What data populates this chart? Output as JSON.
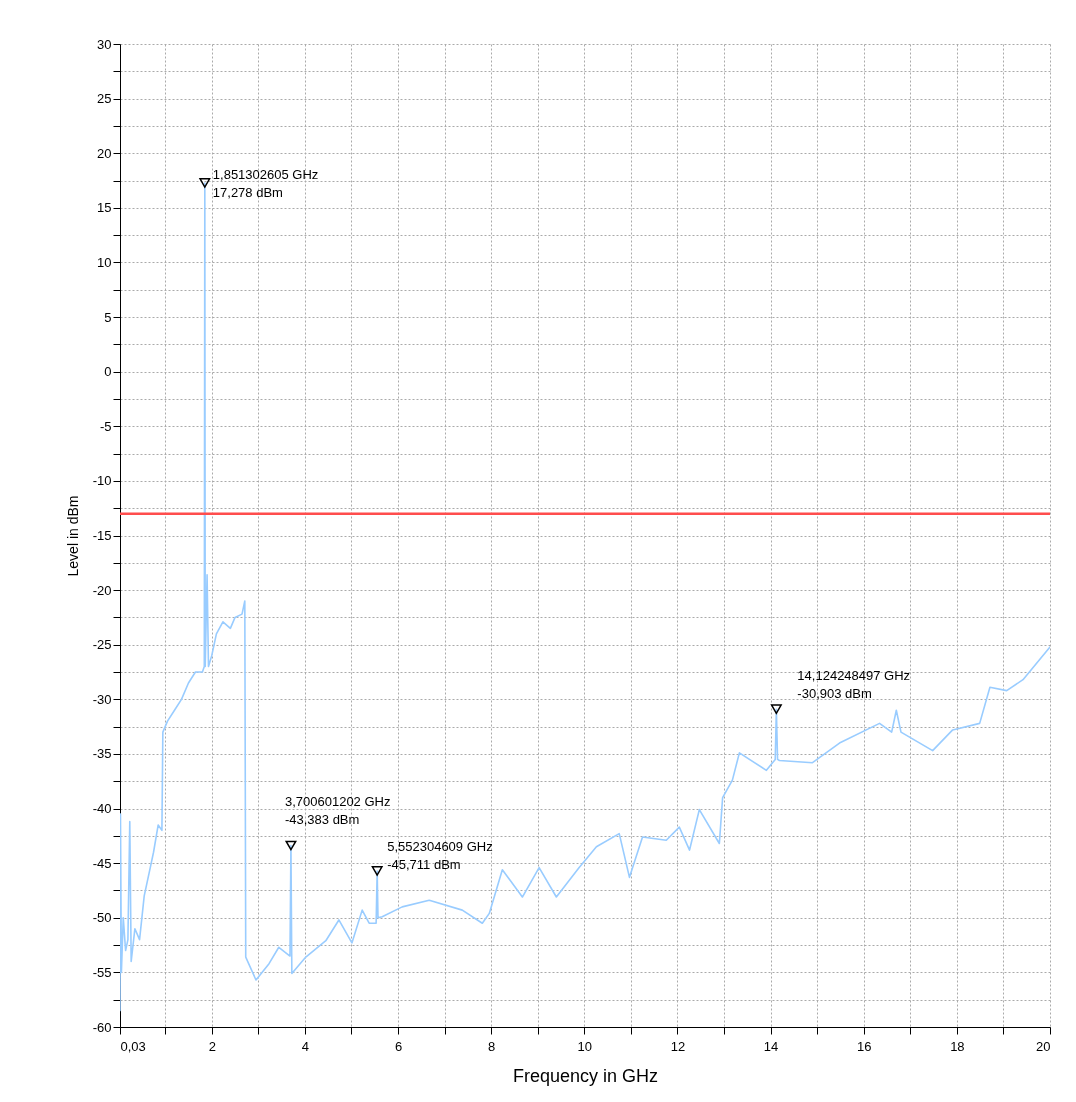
{
  "chart_data": {
    "type": "line",
    "xlabel": "Frequency in GHz",
    "ylabel": "Level in dBm",
    "xlim": [
      0.03,
      20
    ],
    "ylim": [
      -60,
      30
    ],
    "xticks": [
      {
        "value": 0.03,
        "label": "0,03"
      },
      {
        "value": 1,
        "label": null
      },
      2,
      {
        "value": 3,
        "label": null
      },
      4,
      {
        "value": 5,
        "label": null
      },
      6,
      {
        "value": 7,
        "label": null
      },
      8,
      {
        "value": 9,
        "label": null
      },
      10,
      {
        "value": 11,
        "label": null
      },
      12,
      {
        "value": 13,
        "label": null
      },
      14,
      {
        "value": 15,
        "label": null
      },
      16,
      {
        "value": 17,
        "label": null
      },
      18,
      {
        "value": 19,
        "label": null
      },
      20
    ],
    "yticks": [
      -60,
      {
        "value": -57.5,
        "label": null
      },
      -55,
      {
        "value": -52.5,
        "label": null
      },
      -50,
      {
        "value": -47.5,
        "label": null
      },
      -45,
      {
        "value": -42.5,
        "label": null
      },
      -40,
      {
        "value": -37.5,
        "label": null
      },
      -35,
      {
        "value": -32.5,
        "label": null
      },
      -30,
      {
        "value": -27.5,
        "label": null
      },
      -25,
      {
        "value": -22.5,
        "label": null
      },
      -20,
      {
        "value": -17.5,
        "label": null
      },
      -15,
      {
        "value": -12.5,
        "label": null
      },
      -10,
      {
        "value": -7.5,
        "label": null
      },
      -5,
      {
        "value": -2.5,
        "label": null
      },
      0,
      {
        "value": 2.5,
        "label": null
      },
      5,
      {
        "value": 7.5,
        "label": null
      },
      10,
      {
        "value": 12.5,
        "label": null
      },
      15,
      {
        "value": 17.5,
        "label": null
      },
      20,
      {
        "value": 22.5,
        "label": null
      },
      25,
      {
        "value": 27.5,
        "label": null
      },
      30
    ],
    "grid": true,
    "series": [
      {
        "color": "#99ccff",
        "x": [
          0.03,
          0.04,
          0.06,
          0.1,
          0.15,
          0.2,
          0.24,
          0.27,
          0.35,
          0.45,
          0.55,
          0.65,
          0.75,
          0.85,
          0.93,
          0.95,
          1.05,
          1.2,
          1.35,
          1.5,
          1.65,
          1.8,
          1.84,
          1.851302605,
          1.86,
          1.9,
          1.93,
          2.0,
          2.1,
          2.24,
          2.4,
          2.5,
          2.65,
          2.71,
          2.73,
          2.95,
          3.23,
          3.44,
          3.68,
          3.700601202,
          3.72,
          4.02,
          4.45,
          4.73,
          5.01,
          5.23,
          5.38,
          5.53,
          5.552304609,
          5.57,
          5.66,
          6.09,
          6.67,
          7.38,
          7.81,
          7.96,
          8.24,
          8.67,
          9.03,
          9.4,
          9.89,
          10.26,
          10.75,
          10.97,
          11.25,
          11.76,
          12.04,
          12.26,
          12.47,
          12.9,
          12.97,
          13.18,
          13.33,
          13.91,
          14.1,
          14.124248497,
          14.15,
          14.19,
          14.9,
          15.48,
          16.34,
          16.6,
          16.7,
          16.8,
          17.48,
          17.91,
          18.49,
          18.71,
          19.07,
          19.42,
          20
        ],
        "values": [
          -58.5,
          -40.5,
          -55,
          -50,
          -53,
          -52,
          -41.2,
          -54,
          -51,
          -52,
          -48,
          -46,
          -44,
          -41.5,
          -42,
          -33,
          -32,
          -31,
          -30,
          -28.5,
          -27.5,
          -27.5,
          -27,
          17.278,
          -27,
          -18.6,
          -27,
          -26,
          -24,
          -22.9,
          -23.5,
          -22.5,
          -22.2,
          -21,
          -53.6,
          -55.7,
          -54.2,
          -52.7,
          -53.5,
          -43.383,
          -55.1,
          -53.6,
          -52.1,
          -50.2,
          -52.3,
          -49.3,
          -50.5,
          -50.5,
          -45.711,
          -50,
          -49.9,
          -49,
          -48.4,
          -49.3,
          -50.5,
          -49.6,
          -45.6,
          -48.1,
          -45.4,
          -48.1,
          -45.4,
          -43.5,
          -42.3,
          -46.3,
          -42.6,
          -42.9,
          -41.7,
          -43.8,
          -40.1,
          -43.2,
          -39,
          -37.4,
          -34.9,
          -36.5,
          -35.5,
          -30.903,
          -35.5,
          -35.6,
          -35.8,
          -34,
          -32.2,
          -33,
          -31,
          -33,
          -34.7,
          -32.8,
          -32.2,
          -28.9,
          -29.2,
          -28.2,
          -25.2
        ]
      },
      {
        "type": "scatter",
        "color": "#000000",
        "marker": "triangle",
        "x": [
          1.851302605,
          3.700601202,
          5.552304609,
          14.124248497
        ],
        "values": [
          17.278,
          -43.383,
          -45.711,
          -30.903
        ]
      }
    ],
    "ref_lines": [
      {
        "axis": "y",
        "value": -13,
        "color": "#ff4d4d"
      }
    ],
    "annotations": [
      {
        "text": "1,851302605 GHz\n17,278 dBm",
        "x": 1.851302605,
        "y": 17.278
      },
      {
        "text": "3,700601202 GHz\n-43,383 dBm",
        "x": 3.700601202,
        "y": -43.383
      },
      {
        "text": "5,552304609 GHz\n-45,711 dBm",
        "x": 5.552304609,
        "y": -45.711
      },
      {
        "text": "14,124248497 GHz\n-30,903 dBm",
        "x": 14.124248497,
        "y": -30.903
      }
    ]
  }
}
